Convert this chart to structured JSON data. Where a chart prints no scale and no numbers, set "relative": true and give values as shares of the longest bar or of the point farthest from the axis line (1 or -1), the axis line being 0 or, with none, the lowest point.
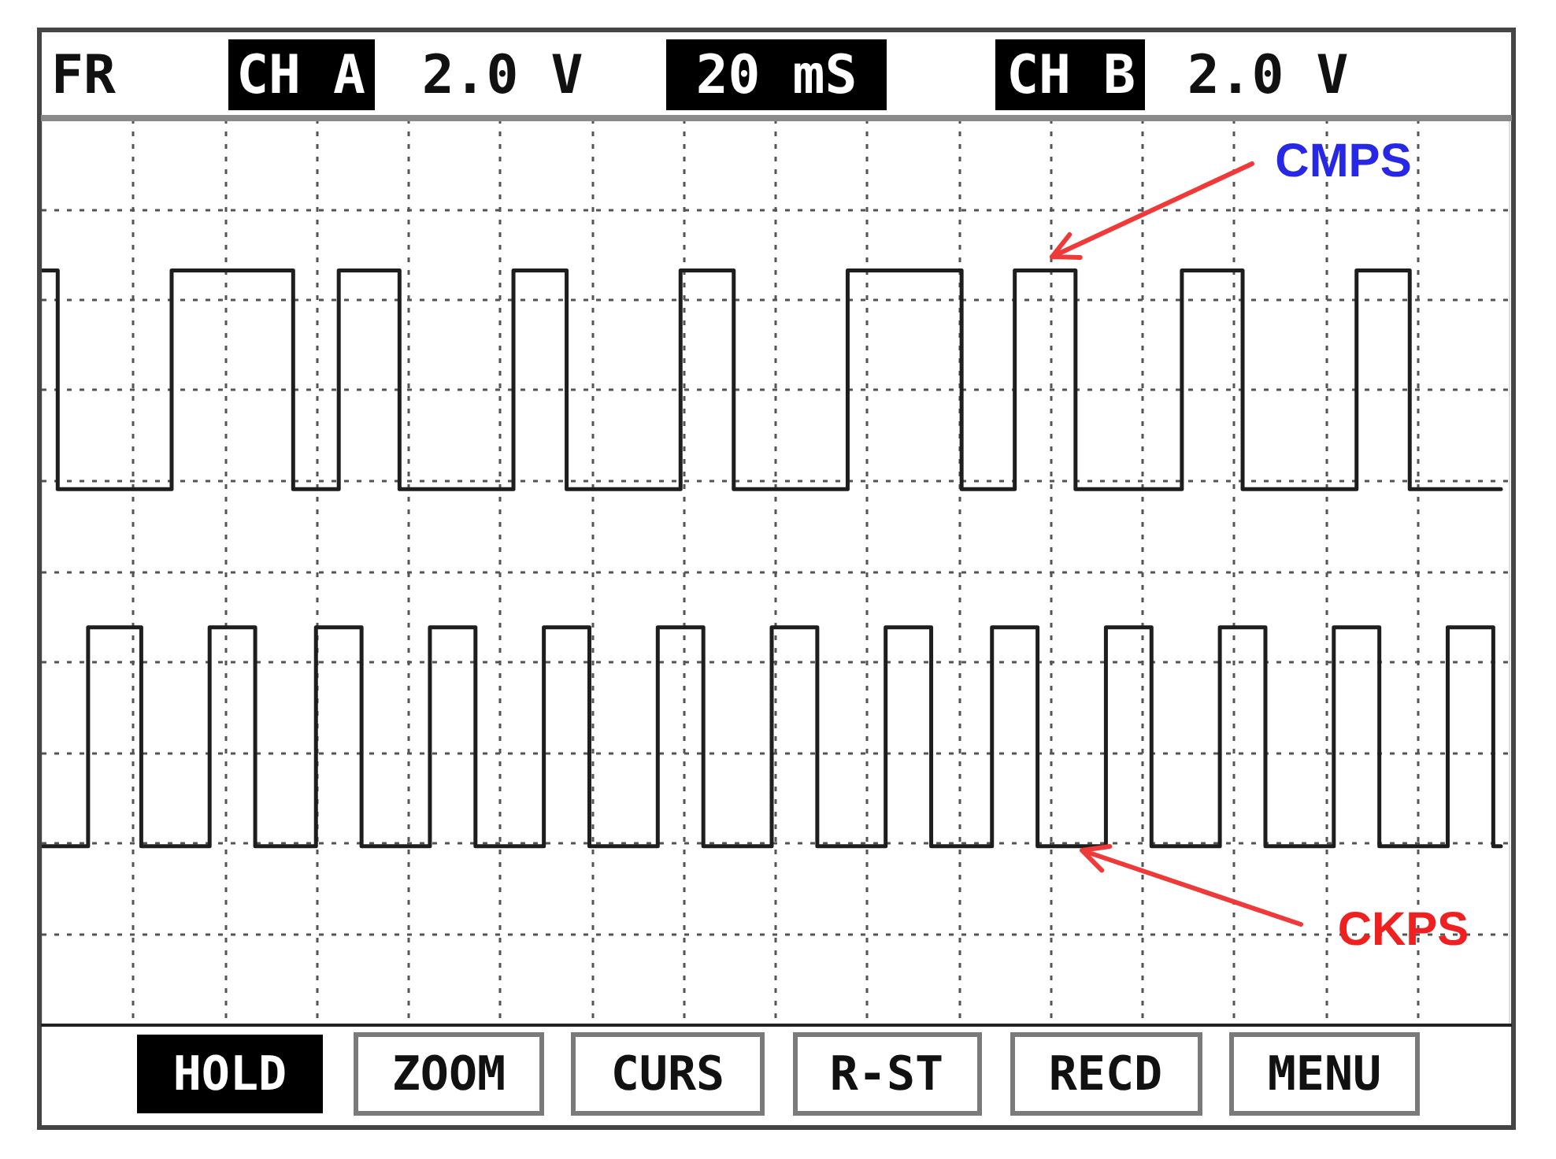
{
  "chart_data": {
    "type": "step",
    "relative": true,
    "grid": true,
    "categories": [
      null,
      null,
      null,
      null,
      null,
      null,
      null,
      null,
      null,
      null,
      null,
      null,
      null,
      null,
      null,
      null,
      null,
      null,
      null,
      null,
      null,
      null,
      null,
      null,
      null,
      null,
      null,
      null,
      null,
      null,
      null,
      null,
      null,
      null,
      null,
      null,
      null,
      null,
      null,
      null,
      null,
      null,
      null,
      null,
      null,
      null,
      null,
      null,
      null,
      null,
      null,
      null,
      null,
      null,
      null,
      null,
      null,
      null,
      null,
      null,
      null,
      null,
      null,
      null,
      null,
      null,
      null,
      null,
      null,
      null,
      null,
      null,
      null,
      null,
      null,
      null,
      null,
      null,
      null,
      null,
      null,
      null,
      null,
      null,
      null,
      null,
      null,
      null,
      null,
      null,
      null,
      null,
      null,
      null,
      null,
      null,
      null,
      null,
      null,
      null,
      null,
      null,
      null,
      null,
      null,
      null,
      null,
      null,
      null,
      null,
      null,
      null,
      null,
      null,
      null,
      null,
      null,
      null,
      null,
      null,
      null,
      null,
      null,
      null,
      null,
      null,
      null,
      null,
      null,
      null,
      null,
      null,
      null,
      null,
      null,
      null,
      null,
      null,
      null,
      null,
      null,
      null,
      null,
      null,
      null,
      null,
      null,
      null,
      null,
      null,
      null,
      null,
      null,
      null,
      null,
      null,
      null,
      null,
      null,
      null,
      null,
      null,
      null,
      null,
      null,
      null,
      null,
      null,
      null,
      null,
      null,
      null,
      null,
      null,
      null,
      null,
      null,
      null,
      null,
      null,
      null,
      null,
      null,
      null,
      null,
      null,
      null,
      null,
      null,
      null,
      null,
      null,
      null
    ],
    "series": [
      {
        "name": "CMPS",
        "color": "#1e1e1e",
        "values": [
          1,
          1,
          0.62,
          0.62,
          0.62,
          0.62,
          0.62,
          0.62,
          0.62,
          0.62,
          0.62,
          0.62,
          0.62,
          0.62,
          0.62,
          0.62,
          0.62,
          1,
          1,
          1,
          1,
          1,
          1,
          1,
          1,
          1,
          1,
          1,
          1,
          1,
          1,
          1,
          1,
          0.62,
          0.62,
          0.62,
          0.62,
          0.62,
          0.62,
          1,
          1,
          1,
          1,
          1,
          1,
          1,
          1,
          0.62,
          0.62,
          0.62,
          0.62,
          0.62,
          0.62,
          0.62,
          0.62,
          0.62,
          0.62,
          0.62,
          0.62,
          0.62,
          0.62,
          0.62,
          1,
          1,
          1,
          1,
          1,
          1,
          1,
          0.62,
          0.62,
          0.62,
          0.62,
          0.62,
          0.62,
          0.62,
          0.62,
          0.62,
          0.62,
          0.62,
          0.62,
          0.62,
          0.62,
          0.62,
          1,
          1,
          1,
          1,
          1,
          1,
          1,
          0.62,
          0.62,
          0.62,
          0.62,
          0.62,
          0.62,
          0.62,
          0.62,
          0.62,
          0.62,
          0.62,
          0.62,
          0.62,
          0.62,
          0.62,
          1,
          1,
          1,
          1,
          1,
          1,
          1,
          1,
          1,
          1,
          1,
          1,
          1,
          1,
          1,
          0.62,
          0.62,
          0.62,
          0.62,
          0.62,
          0.62,
          0.62,
          1,
          1,
          1,
          1,
          1,
          1,
          1,
          1,
          0.62,
          0.62,
          0.62,
          0.62,
          0.62,
          0.62,
          0.62,
          0.62,
          0.62,
          0.62,
          0.62,
          0.62,
          0.62,
          0.62,
          1,
          1,
          1,
          1,
          1,
          1,
          1,
          1,
          0.62,
          0.62,
          0.62,
          0.62,
          0.62,
          0.62,
          0.62,
          0.62,
          0.62,
          0.62,
          0.62,
          0.62,
          0.62,
          0.62,
          0.62,
          1,
          1,
          1,
          1,
          1,
          1,
          1,
          0.62,
          0.62,
          0.62,
          0.62,
          0.62,
          0.62,
          0.62,
          0.62,
          0.62,
          0.62,
          0.62,
          0.62,
          0.62
        ]
      },
      {
        "name": "CKPS",
        "color": "#1e1e1e",
        "values": [
          0,
          0,
          0,
          0,
          0,
          0,
          0.38,
          0.38,
          0.38,
          0.38,
          0.38,
          0.38,
          0.38,
          0,
          0,
          0,
          0,
          0,
          0,
          0,
          0,
          0,
          0.38,
          0.38,
          0.38,
          0.38,
          0.38,
          0.38,
          0,
          0,
          0,
          0,
          0,
          0,
          0,
          0,
          0.38,
          0.38,
          0.38,
          0.38,
          0.38,
          0.38,
          0,
          0,
          0,
          0,
          0,
          0,
          0,
          0,
          0,
          0.38,
          0.38,
          0.38,
          0.38,
          0.38,
          0.38,
          0,
          0,
          0,
          0,
          0,
          0,
          0,
          0,
          0,
          0.38,
          0.38,
          0.38,
          0.38,
          0.38,
          0.38,
          0,
          0,
          0,
          0,
          0,
          0,
          0,
          0,
          0,
          0.38,
          0.38,
          0.38,
          0.38,
          0.38,
          0.38,
          0,
          0,
          0,
          0,
          0,
          0,
          0,
          0,
          0,
          0.38,
          0.38,
          0.38,
          0.38,
          0.38,
          0.38,
          0,
          0,
          0,
          0,
          0,
          0,
          0,
          0,
          0,
          0.38,
          0.38,
          0.38,
          0.38,
          0.38,
          0.38,
          0,
          0,
          0,
          0,
          0,
          0,
          0,
          0,
          0.38,
          0.38,
          0.38,
          0.38,
          0.38,
          0.38,
          0,
          0,
          0,
          0,
          0,
          0,
          0,
          0,
          0,
          0.38,
          0.38,
          0.38,
          0.38,
          0.38,
          0.38,
          0,
          0,
          0,
          0,
          0,
          0,
          0,
          0,
          0,
          0.38,
          0.38,
          0.38,
          0.38,
          0.38,
          0.38,
          0,
          0,
          0,
          0,
          0,
          0,
          0,
          0,
          0,
          0.38,
          0.38,
          0.38,
          0.38,
          0.38,
          0.38,
          0,
          0,
          0,
          0,
          0,
          0,
          0,
          0,
          0,
          0.38,
          0.38,
          0.38,
          0.38,
          0.38,
          0.38,
          0,
          0
        ]
      }
    ],
    "annotations": [
      "FR",
      "CH A",
      "2.0 V",
      "20 mS",
      "CH B",
      "2.0 V",
      "HOLD",
      "ZOOM",
      "CURS",
      "R-ST",
      "RECD",
      "MENU"
    ]
  }
}
